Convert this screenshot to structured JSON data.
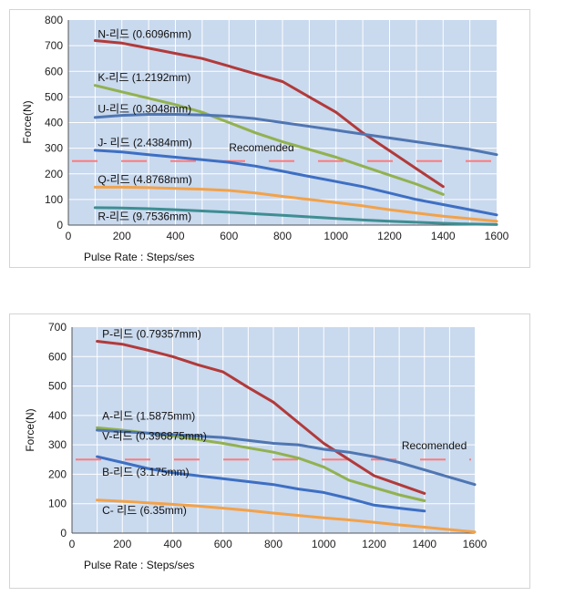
{
  "chart_data": [
    {
      "type": "line",
      "xlabel": "Pulse Rate : Steps/ses",
      "ylabel": "Force(N)",
      "xlim": [
        0,
        1600
      ],
      "ylim": [
        0,
        800
      ],
      "xticks": [
        0,
        200,
        400,
        600,
        800,
        1000,
        1200,
        1400,
        1600
      ],
      "xtick_labels": [
        "0",
        "200",
        "400",
        "600",
        "800",
        "1000",
        "1200",
        "1400",
        "1600"
      ],
      "yticks": [
        0,
        100,
        200,
        300,
        400,
        500,
        600,
        700,
        800
      ],
      "ytick_labels": [
        "0",
        "100",
        "200",
        "300",
        "400",
        "500",
        "600",
        "700",
        "800"
      ],
      "grid": true,
      "plot_background": "#c9d9ee",
      "series": [
        {
          "name": "N-리드 (0.6096mm)",
          "color": "#b13a3a",
          "x": [
            100,
            200,
            300,
            400,
            500,
            600,
            700,
            800,
            900,
            1000,
            1100,
            1200,
            1300,
            1400
          ],
          "y": [
            720,
            710,
            690,
            670,
            650,
            620,
            590,
            560,
            500,
            440,
            360,
            290,
            220,
            150
          ],
          "label_at": [
            110,
            730
          ]
        },
        {
          "name": "K-리드 (1.2192mm)",
          "color": "#92b150",
          "x": [
            100,
            200,
            300,
            400,
            500,
            600,
            700,
            800,
            900,
            1000,
            1100,
            1200,
            1300,
            1400
          ],
          "y": [
            545,
            520,
            495,
            470,
            440,
            400,
            360,
            325,
            295,
            265,
            230,
            195,
            160,
            120
          ],
          "label_at": [
            110,
            562
          ]
        },
        {
          "name": "U-리드 (0.3048mm)",
          "color": "#4f76b2",
          "x": [
            100,
            200,
            300,
            400,
            500,
            600,
            700,
            800,
            900,
            1000,
            1100,
            1200,
            1300,
            1400,
            1500,
            1600
          ],
          "y": [
            420,
            428,
            432,
            432,
            430,
            425,
            415,
            400,
            385,
            370,
            355,
            340,
            325,
            310,
            295,
            275
          ],
          "label_at": [
            110,
            440
          ]
        },
        {
          "name": "J- 리드 (2.4384mm)",
          "color": "#3d6fc3",
          "x": [
            100,
            200,
            300,
            400,
            500,
            600,
            700,
            800,
            900,
            1000,
            1100,
            1200,
            1300,
            1400,
            1500,
            1600
          ],
          "y": [
            292,
            285,
            275,
            265,
            255,
            245,
            230,
            210,
            190,
            170,
            150,
            125,
            100,
            80,
            60,
            40
          ],
          "label_at": [
            110,
            308
          ]
        },
        {
          "name": "Q-리드 (4.8768mm)",
          "color": "#f2a24a",
          "x": [
            100,
            200,
            300,
            400,
            500,
            600,
            700,
            800,
            900,
            1000,
            1100,
            1200,
            1300,
            1400,
            1500,
            1600
          ],
          "y": [
            148,
            148,
            146,
            143,
            140,
            135,
            125,
            112,
            100,
            88,
            75,
            60,
            47,
            35,
            25,
            15
          ],
          "label_at": [
            110,
            164
          ]
        },
        {
          "name": "R-리드 (9.7536mm)",
          "color": "#3e8e92",
          "x": [
            100,
            200,
            300,
            400,
            500,
            600,
            700,
            800,
            900,
            1000,
            1100,
            1200,
            1300,
            1400,
            1500,
            1600
          ],
          "y": [
            68,
            67,
            64,
            60,
            55,
            50,
            44,
            38,
            32,
            26,
            20,
            15,
            11,
            7,
            4,
            2
          ],
          "label_at": [
            110,
            20
          ]
        }
      ],
      "reference_line": {
        "label": "Recomended",
        "y": 250,
        "color": "#ff7a7a",
        "dashed": true,
        "label_at": [
          600,
          288
        ]
      }
    },
    {
      "type": "line",
      "xlabel": "Pulse Rate : Steps/ses",
      "ylabel": "Force(N)",
      "xlim": [
        0,
        1600
      ],
      "ylim": [
        0,
        700
      ],
      "xticks": [
        0,
        200,
        400,
        600,
        800,
        1000,
        1200,
        1400,
        1600
      ],
      "xtick_labels": [
        "0",
        "200",
        "400",
        "600",
        "800",
        "1000",
        "1200",
        "1400",
        "1600"
      ],
      "yticks": [
        0,
        100,
        200,
        300,
        400,
        500,
        600,
        700
      ],
      "ytick_labels": [
        "0",
        "100",
        "200",
        "300",
        "400",
        "500",
        "600",
        "700"
      ],
      "grid": true,
      "plot_background": "#c9d9ee",
      "series": [
        {
          "name": "P-리드 (0.79357mm)",
          "color": "#b13a3a",
          "x": [
            100,
            200,
            300,
            400,
            500,
            600,
            700,
            800,
            900,
            1000,
            1100,
            1200,
            1300,
            1400
          ],
          "y": [
            652,
            642,
            622,
            600,
            572,
            548,
            495,
            445,
            375,
            305,
            250,
            195,
            165,
            135
          ],
          "label_at": [
            120,
            665
          ]
        },
        {
          "name": "A-리드 (1.5875mm)",
          "color": "#92b150",
          "x": [
            100,
            200,
            300,
            400,
            500,
            600,
            700,
            800,
            900,
            1000,
            1100,
            1200,
            1300,
            1400
          ],
          "y": [
            358,
            350,
            340,
            330,
            318,
            305,
            290,
            275,
            255,
            225,
            180,
            155,
            130,
            110
          ],
          "label_at": [
            120,
            385
          ]
        },
        {
          "name": "V-리드 (0.396875mm)",
          "color": "#4f76b2",
          "x": [
            100,
            200,
            300,
            400,
            500,
            600,
            700,
            800,
            900,
            1000,
            1100,
            1200,
            1300,
            1400,
            1500,
            1600
          ],
          "y": [
            350,
            345,
            340,
            335,
            330,
            325,
            315,
            305,
            300,
            285,
            275,
            260,
            240,
            215,
            190,
            165
          ],
          "label_at": [
            120,
            318
          ]
        },
        {
          "name": "B-리드 (3.175mm)",
          "color": "#3d6fc3",
          "x": [
            100,
            200,
            300,
            400,
            500,
            600,
            700,
            800,
            900,
            1000,
            1100,
            1200,
            1300,
            1400
          ],
          "y": [
            260,
            240,
            220,
            205,
            195,
            185,
            175,
            165,
            150,
            138,
            118,
            95,
            85,
            75
          ],
          "label_at": [
            120,
            195
          ]
        },
        {
          "name": "C- 리드 (6.35mm)",
          "color": "#f2a24a",
          "x": [
            100,
            200,
            300,
            400,
            500,
            600,
            700,
            800,
            900,
            1000,
            1100,
            1200,
            1300,
            1400,
            1500,
            1600
          ],
          "y": [
            112,
            108,
            103,
            98,
            92,
            85,
            77,
            68,
            60,
            52,
            45,
            37,
            28,
            20,
            12,
            4
          ],
          "label_at": [
            120,
            65
          ]
        }
      ],
      "reference_line": {
        "label": "Recomended",
        "y": 250,
        "color": "#ff7a7a",
        "dashed": true,
        "label_at": [
          1310,
          285
        ]
      }
    }
  ]
}
